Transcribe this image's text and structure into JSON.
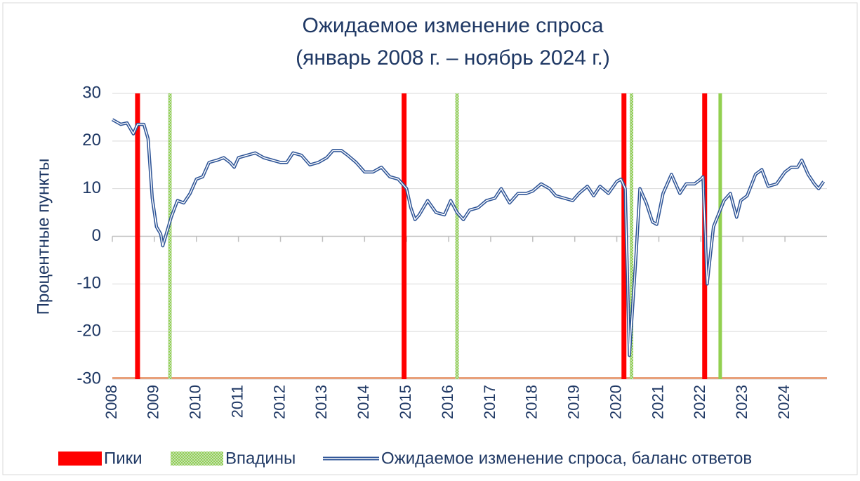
{
  "chart_data": {
    "type": "line",
    "title": "Ожидаемое изменение спроса",
    "subtitle": "(январь 2008 г. – ноябрь 2024 г.)",
    "y_label": "Процентные пункты",
    "x": [
      2008.0,
      2008.2,
      2008.35,
      2008.5,
      2008.6,
      2008.75,
      2008.85,
      2008.95,
      2009.05,
      2009.15,
      2009.2,
      2009.3,
      2009.4,
      2009.55,
      2009.7,
      2009.85,
      2010.0,
      2010.15,
      2010.3,
      2010.5,
      2010.65,
      2010.8,
      2010.9,
      2011.0,
      2011.2,
      2011.4,
      2011.6,
      2011.8,
      2012.0,
      2012.15,
      2012.3,
      2012.5,
      2012.7,
      2012.9,
      2013.1,
      2013.25,
      2013.45,
      2013.6,
      2013.8,
      2014.0,
      2014.2,
      2014.4,
      2014.6,
      2014.8,
      2015.0,
      2015.1,
      2015.2,
      2015.3,
      2015.5,
      2015.7,
      2015.9,
      2016.05,
      2016.2,
      2016.35,
      2016.5,
      2016.7,
      2016.9,
      2017.1,
      2017.25,
      2017.45,
      2017.65,
      2017.85,
      2018.0,
      2018.2,
      2018.4,
      2018.55,
      2018.75,
      2018.95,
      2019.1,
      2019.3,
      2019.45,
      2019.6,
      2019.8,
      2020.0,
      2020.1,
      2020.2,
      2020.3,
      2020.45,
      2020.55,
      2020.7,
      2020.85,
      2020.95,
      2021.1,
      2021.3,
      2021.5,
      2021.65,
      2021.85,
      2022.0,
      2022.05,
      2022.15,
      2022.3,
      2022.55,
      2022.7,
      2022.85,
      2022.95,
      2023.1,
      2023.3,
      2023.45,
      2023.6,
      2023.8,
      2024.0,
      2024.15,
      2024.3,
      2024.4,
      2024.55,
      2024.7,
      2024.8,
      2024.92
    ],
    "series": [
      {
        "name": "Ожидаемое изменение спроса, баланс ответов",
        "color": "#2f5597",
        "values": [
          24.5,
          23.5,
          23.8,
          21.5,
          23.5,
          23.5,
          20.5,
          8,
          2,
          0.5,
          -2,
          1,
          4,
          7.5,
          7,
          9,
          12,
          12.5,
          15.5,
          16,
          16.5,
          15.5,
          14.5,
          16.5,
          17,
          17.5,
          16.5,
          16,
          15.5,
          15.5,
          17.5,
          17,
          15,
          15.5,
          16.5,
          18,
          18,
          17,
          15.5,
          13.5,
          13.5,
          14.5,
          12.5,
          12,
          10,
          6,
          3.5,
          4.5,
          7.5,
          5,
          4.5,
          7.5,
          5,
          3.5,
          5.5,
          6,
          7.5,
          8,
          10,
          7,
          9,
          9,
          9.5,
          11,
          10,
          8.5,
          8,
          7.5,
          9,
          10.5,
          8.5,
          10.5,
          9,
          11.5,
          12,
          10,
          -25,
          -5,
          10,
          7,
          3,
          2.5,
          9,
          13,
          9,
          11,
          11,
          12,
          12.5,
          -10,
          2,
          7.5,
          9,
          4,
          7.5,
          8.5,
          13,
          14,
          10.5,
          11,
          13.5,
          14.5,
          14.5,
          16,
          13,
          11,
          10,
          11.5
        ]
      }
    ],
    "peaks": {
      "name": "Пики",
      "color": "#ff0000",
      "x": [
        2008.6,
        2014.94,
        2020.17,
        2022.09
      ]
    },
    "troughs": {
      "name": "Впадины",
      "color": "#92d050",
      "x": [
        2009.37,
        2016.2,
        2020.35,
        2022.46
      ]
    },
    "xlim": [
      2008,
      2025
    ],
    "xticks": [
      2008,
      2009,
      2010,
      2011,
      2012,
      2013,
      2014,
      2015,
      2016,
      2017,
      2018,
      2019,
      2020,
      2021,
      2022,
      2023,
      2024
    ],
    "ylim": [
      -30,
      30
    ],
    "yticks": [
      -30,
      -20,
      -10,
      0,
      10,
      20,
      30
    ],
    "grid": true
  }
}
